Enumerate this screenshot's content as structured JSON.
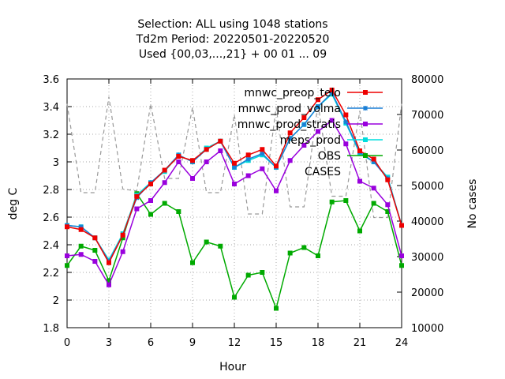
{
  "title_lines": [
    "Selection: ALL using  1048 stations",
    "Td2m   Period: 20220501-20220520",
    "Used {00,03,...,21} + 00 01 ... 09"
  ],
  "chart_data": {
    "type": "line",
    "xlabel": "Hour",
    "ylabel": "deg C",
    "y2label": "No cases",
    "xlim": [
      0,
      24
    ],
    "ylim": [
      1.8,
      3.6
    ],
    "y2lim": [
      10000,
      80000
    ],
    "xticks": [
      0,
      3,
      6,
      9,
      12,
      15,
      18,
      21,
      24
    ],
    "yticks": [
      "1.8",
      "2",
      "2.2",
      "2.4",
      "2.6",
      "2.8",
      "3",
      "3.2",
      "3.4",
      "3.6"
    ],
    "y2ticks": [
      "10000",
      "20000",
      "30000",
      "40000",
      "50000",
      "60000",
      "70000",
      "80000"
    ],
    "x": [
      0,
      1,
      2,
      3,
      4,
      5,
      6,
      7,
      8,
      9,
      10,
      11,
      12,
      13,
      14,
      15,
      16,
      17,
      18,
      19,
      20,
      21,
      22,
      23,
      24
    ],
    "series": [
      {
        "name": "mnwc_preop_telo",
        "color": "#ee0000",
        "marker": "square",
        "axis": "y1",
        "values": [
          2.53,
          2.51,
          2.45,
          2.27,
          2.47,
          2.75,
          2.84,
          2.94,
          3.04,
          3.01,
          3.09,
          3.15,
          2.99,
          3.05,
          3.09,
          2.97,
          3.21,
          3.32,
          3.45,
          3.52,
          3.34,
          3.08,
          3.02,
          2.87,
          2.54
        ]
      },
      {
        "name": "mnwc_prod_volma",
        "color": "#1a7fd6",
        "marker": "star",
        "axis": "y1",
        "values": [
          2.54,
          2.53,
          2.45,
          2.28,
          2.47,
          2.74,
          2.85,
          2.94,
          3.05,
          3.0,
          3.09,
          3.15,
          2.96,
          3.02,
          3.06,
          2.96,
          3.17,
          3.27,
          3.4,
          3.5,
          3.29,
          3.07,
          3.0,
          2.88,
          2.54
        ]
      },
      {
        "name": "mnwc_prod_stratis",
        "color": "#9900dd",
        "marker": "square",
        "axis": "y1",
        "values": [
          2.32,
          2.33,
          2.28,
          2.11,
          2.35,
          2.66,
          2.72,
          2.85,
          3.0,
          2.88,
          3.0,
          3.08,
          2.84,
          2.9,
          2.95,
          2.79,
          3.01,
          3.12,
          3.22,
          3.3,
          3.13,
          2.86,
          2.81,
          2.69,
          2.32
        ]
      },
      {
        "name": "meps_prod",
        "color": "#00dddd",
        "marker": "square",
        "axis": "y1",
        "values": [
          2.54,
          2.53,
          2.45,
          2.29,
          2.48,
          2.76,
          2.85,
          2.93,
          3.05,
          3.0,
          3.1,
          3.15,
          2.96,
          3.01,
          3.05,
          2.96,
          3.17,
          3.27,
          3.4,
          3.49,
          3.28,
          3.06,
          3.0,
          2.89,
          2.54
        ]
      },
      {
        "name": "OBS",
        "color": "#00aa00",
        "marker": "square",
        "axis": "y1",
        "values": [
          2.25,
          2.39,
          2.36,
          2.14,
          2.45,
          2.77,
          2.62,
          2.7,
          2.64,
          2.27,
          2.42,
          2.39,
          2.02,
          2.18,
          2.2,
          1.94,
          2.34,
          2.38,
          2.32,
          2.71,
          2.72,
          2.5,
          2.7,
          2.64,
          2.25
        ]
      },
      {
        "name": "CASES",
        "color": "#999999",
        "dashed": true,
        "axis": "y2",
        "values": [
          73000,
          48000,
          48000,
          75000,
          49000,
          48500,
          73000,
          52000,
          52000,
          72000,
          48000,
          48000,
          70000,
          42000,
          42000,
          72000,
          44000,
          44000,
          73000,
          47000,
          47000,
          71000,
          41000,
          41000,
          73000
        ]
      }
    ]
  }
}
